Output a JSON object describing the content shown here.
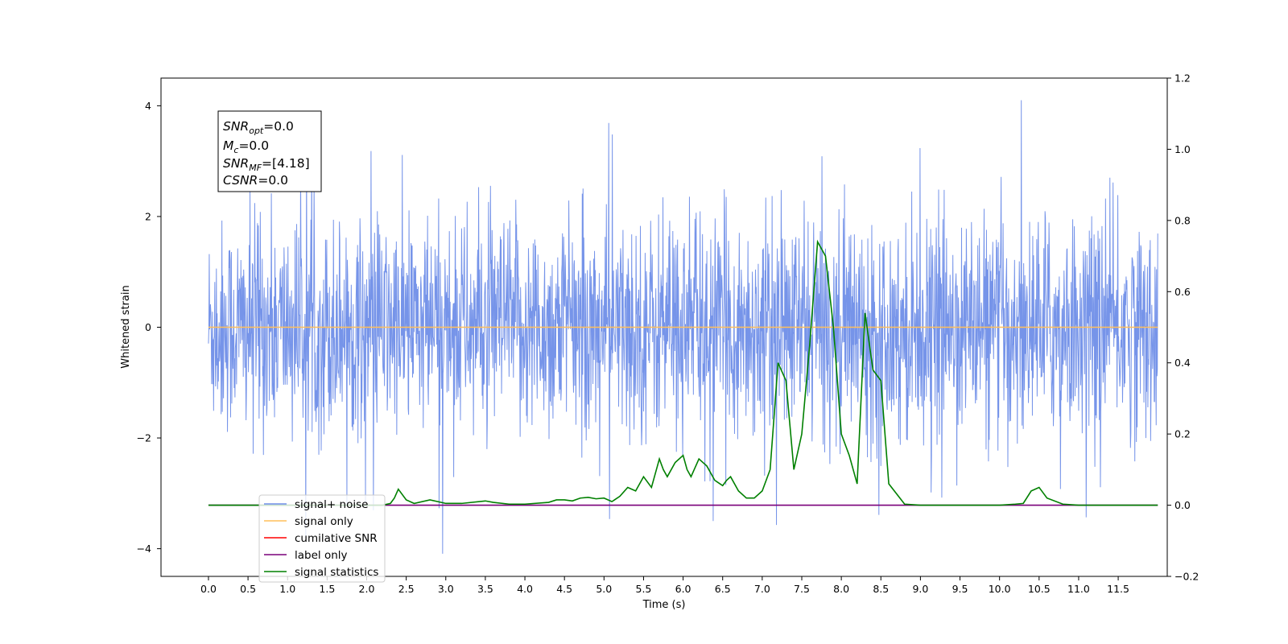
{
  "chart_data": {
    "type": "line",
    "xlabel": "Time (s)",
    "ylabel": "Whitened strain",
    "xlim": [
      -0.6,
      12.12
    ],
    "ylim": [
      -4.5,
      4.5
    ],
    "y2lim": [
      -0.2,
      1.2
    ],
    "x_ticks": [
      "0.0",
      "0.5",
      "1.0",
      "1.5",
      "2.0",
      "2.5",
      "3.0",
      "3.5",
      "4.0",
      "4.5",
      "5.0",
      "5.5",
      "6.0",
      "6.5",
      "7.0",
      "7.5",
      "8.0",
      "8.5",
      "9.0",
      "9.5",
      "10.0",
      "10.5",
      "11.0",
      "11.5"
    ],
    "y_ticks": [
      "4",
      "2",
      "0",
      "−2",
      "−4"
    ],
    "y2_ticks": [
      "1.2",
      "1.0",
      "0.8",
      "0.6",
      "0.4",
      "0.2",
      "0.0",
      "−0.2"
    ],
    "grid": false,
    "legend_placement": "lower-left",
    "annotation": {
      "snr_opt": "SNR",
      "snr_opt_sub": "opt",
      "snr_opt_val": "=0.0",
      "mc": "M",
      "mc_sub": "c",
      "mc_val": "=0.0",
      "snr_mf": "SNR",
      "snr_mf_sub": "MF",
      "snr_mf_val": "=[4.18]",
      "csnr": "CSNR",
      "csnr_val": "=0.0"
    },
    "series": [
      {
        "name": "signal+ noise",
        "color": "#6f8ee8",
        "x_range": [
          0.0,
          12.0
        ],
        "envelope_typical": [
          -2.0,
          2.0
        ],
        "envelope_peaks": [
          -4.1,
          4.1
        ],
        "note_values": "dense noise, sample-level values not recoverable"
      },
      {
        "name": "signal only",
        "color": "#ffbf5a",
        "x": [
          0.0,
          12.0
        ],
        "values": [
          0.0,
          0.0
        ]
      },
      {
        "name": "cumilative SNR",
        "color": "#ff0000",
        "x": [],
        "values": []
      },
      {
        "name": "label only",
        "color": "#7a007a",
        "axis": "right",
        "x": [
          0.0,
          12.0
        ],
        "values": [
          0.0,
          0.0
        ]
      },
      {
        "name": "signal statistics",
        "color": "#008000",
        "axis": "right",
        "x": [
          0.0,
          0.5,
          1.0,
          1.5,
          2.0,
          2.2,
          2.3,
          2.35,
          2.4,
          2.5,
          2.6,
          2.8,
          3.0,
          3.2,
          3.5,
          3.6,
          3.8,
          4.0,
          4.3,
          4.4,
          4.5,
          4.6,
          4.7,
          4.8,
          4.9,
          5.0,
          5.1,
          5.2,
          5.3,
          5.4,
          5.5,
          5.6,
          5.7,
          5.75,
          5.8,
          5.9,
          6.0,
          6.05,
          6.1,
          6.2,
          6.3,
          6.4,
          6.5,
          6.55,
          6.6,
          6.7,
          6.8,
          6.9,
          7.0,
          7.1,
          7.2,
          7.3,
          7.4,
          7.5,
          7.6,
          7.7,
          7.8,
          7.9,
          8.0,
          8.1,
          8.2,
          8.3,
          8.4,
          8.5,
          8.6,
          8.8,
          9.0,
          9.5,
          10.0,
          10.2,
          10.3,
          10.4,
          10.5,
          10.6,
          10.8,
          11.0,
          11.5,
          12.0
        ],
        "values": [
          0.0,
          0.0,
          0.0,
          0.0,
          0.0,
          0.0,
          0.005,
          0.02,
          0.045,
          0.015,
          0.005,
          0.015,
          0.005,
          0.005,
          0.012,
          0.008,
          0.003,
          0.003,
          0.008,
          0.015,
          0.015,
          0.012,
          0.02,
          0.022,
          0.018,
          0.02,
          0.01,
          0.025,
          0.05,
          0.04,
          0.08,
          0.05,
          0.13,
          0.1,
          0.08,
          0.12,
          0.14,
          0.1,
          0.08,
          0.13,
          0.11,
          0.07,
          0.055,
          0.07,
          0.08,
          0.04,
          0.02,
          0.02,
          0.04,
          0.1,
          0.4,
          0.35,
          0.1,
          0.2,
          0.45,
          0.74,
          0.7,
          0.5,
          0.2,
          0.14,
          0.06,
          0.54,
          0.38,
          0.35,
          0.06,
          0.003,
          0.0,
          0.0,
          0.0,
          0.003,
          0.005,
          0.04,
          0.05,
          0.02,
          0.003,
          0.0,
          0.0,
          0.0
        ]
      }
    ]
  }
}
